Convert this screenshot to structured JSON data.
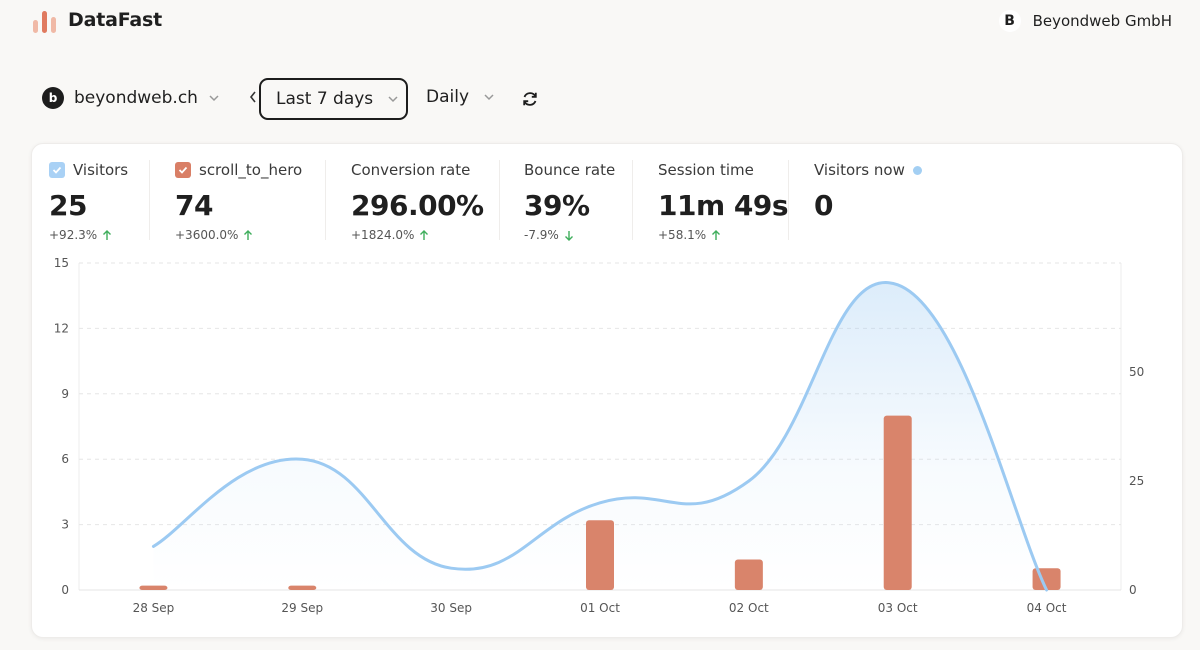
{
  "app": {
    "brand": "DataFast",
    "org_initial": "B",
    "org_name": "Beyondweb GmbH"
  },
  "controls": {
    "site_initial": "b",
    "site": "beyondweb.ch",
    "period": "Last 7 days",
    "granularity": "Daily"
  },
  "stats": [
    {
      "label": "Visitors",
      "value": "25",
      "delta": "+92.3%",
      "trend": "up",
      "checkbox": "blue"
    },
    {
      "label": "scroll_to_hero",
      "value": "74",
      "delta": "+3600.0%",
      "trend": "up",
      "checkbox": "orange"
    },
    {
      "label": "Conversion rate",
      "value": "296.00%",
      "delta": "+1824.0%",
      "trend": "up"
    },
    {
      "label": "Bounce rate",
      "value": "39%",
      "delta": "-7.9%",
      "trend": "down"
    },
    {
      "label": "Session time",
      "value": "11m 49s",
      "delta": "+58.1%",
      "trend": "up"
    },
    {
      "label": "Visitors now",
      "value": "0",
      "live": true
    }
  ],
  "colors": {
    "visitors": "#9ccaf2",
    "goal": "#d9846b",
    "trend": "#3fae5c"
  },
  "chart_data": {
    "type": "bar+line",
    "categories": [
      "28 Sep",
      "29 Sep",
      "30 Sep",
      "01 Oct",
      "02 Oct",
      "03 Oct",
      "04 Oct"
    ],
    "series": [
      {
        "name": "Visitors",
        "type": "line",
        "axis": "left",
        "values": [
          2,
          6,
          1,
          4,
          5,
          14,
          0
        ]
      },
      {
        "name": "scroll_to_hero",
        "type": "bar",
        "axis": "right",
        "values": [
          1,
          1,
          0,
          16,
          7,
          40,
          5
        ]
      }
    ],
    "left_axis": {
      "ticks": [
        "0",
        "3",
        "6",
        "9",
        "12",
        "15"
      ],
      "range": [
        0,
        15
      ]
    },
    "right_axis": {
      "ticks": [
        "0",
        "25",
        "50"
      ],
      "range": [
        0,
        75
      ]
    }
  }
}
